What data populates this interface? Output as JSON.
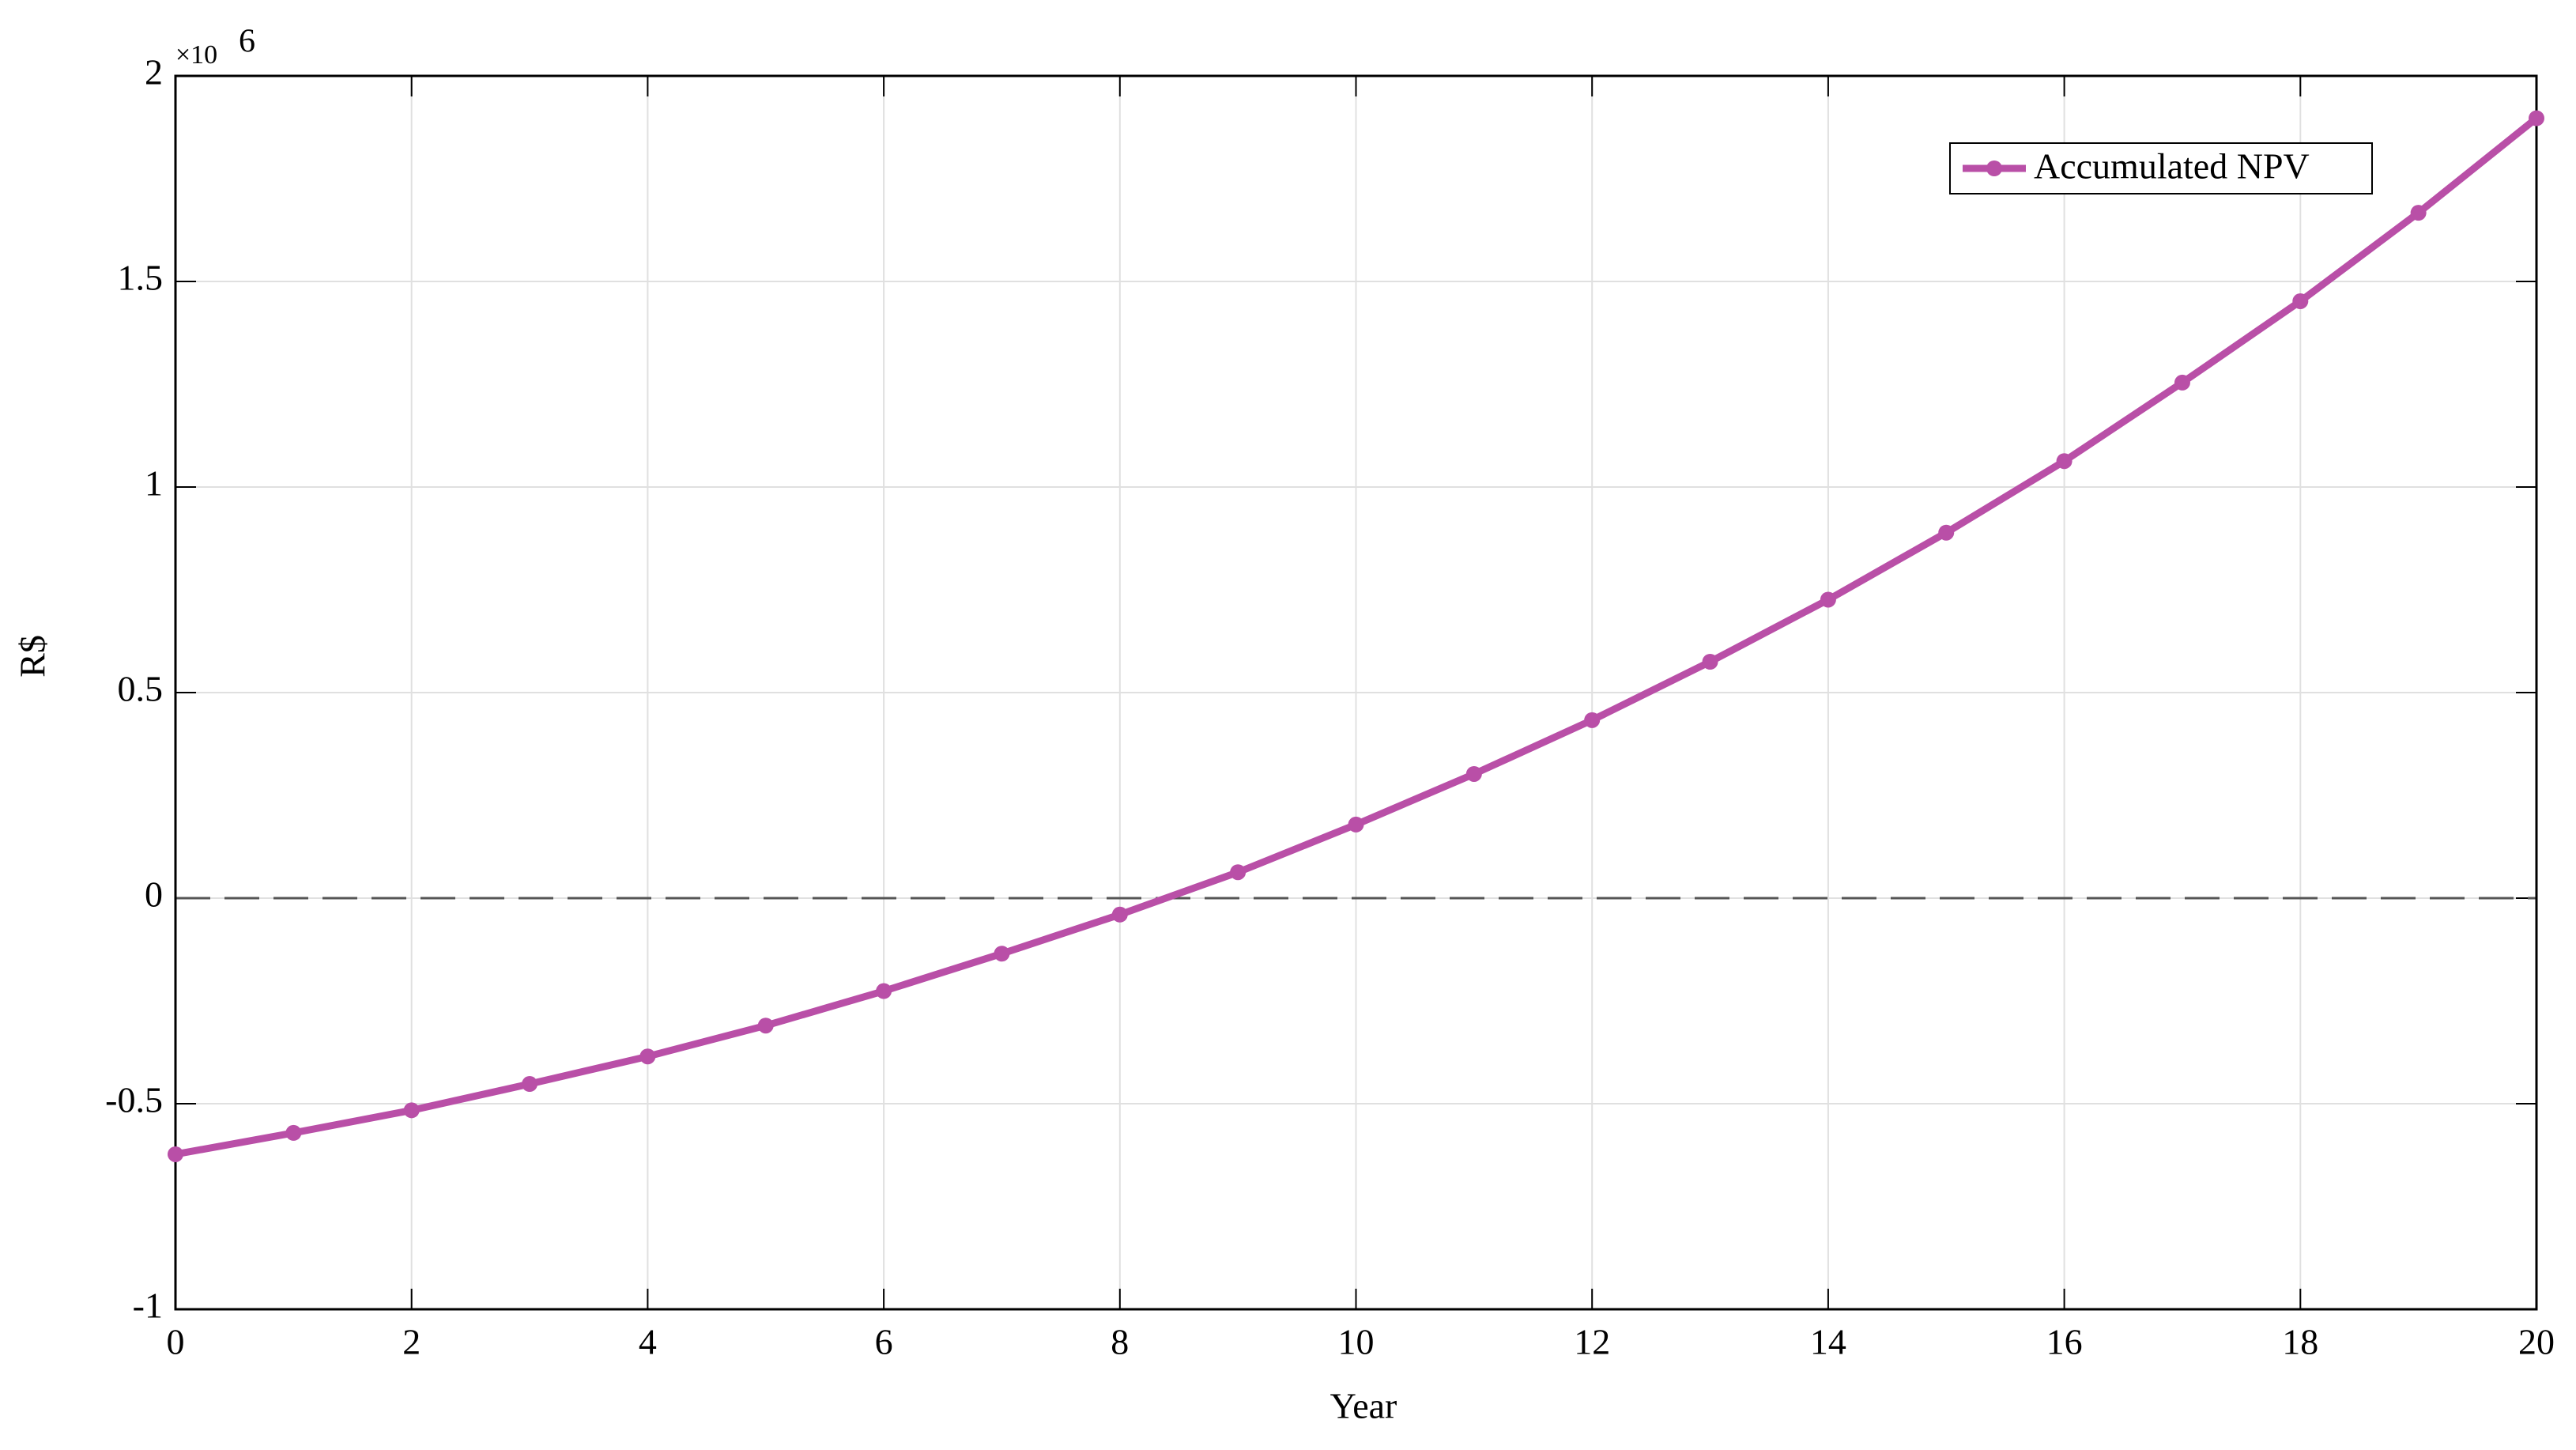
{
  "chart_data": {
    "type": "line",
    "x_label": "Year",
    "y_label": "R$",
    "y_scale_base": "×10",
    "y_scale_exponent": "6",
    "x": [
      0,
      1,
      2,
      3,
      4,
      5,
      6,
      7,
      8,
      9,
      10,
      11,
      12,
      13,
      14,
      15,
      16,
      17,
      18,
      19,
      20
    ],
    "series": [
      {
        "name": "Accumulated NPV",
        "color": "#b94fa7",
        "values": [
          -0.623,
          -0.571,
          -0.516,
          -0.452,
          -0.385,
          -0.31,
          -0.226,
          -0.135,
          -0.04,
          0.063,
          0.179,
          0.302,
          0.433,
          0.575,
          0.726,
          0.889,
          1.063,
          1.254,
          1.452,
          1.667,
          1.897
        ]
      }
    ],
    "xlim": [
      0,
      20
    ],
    "xticks": [
      0,
      2,
      4,
      6,
      8,
      10,
      12,
      14,
      16,
      18,
      20
    ],
    "ylim": [
      -1,
      2
    ],
    "yticks": [
      -1,
      -0.5,
      0,
      0.5,
      1,
      1.5,
      2
    ],
    "grid": true,
    "zero_line": true,
    "legend": "upper right"
  }
}
